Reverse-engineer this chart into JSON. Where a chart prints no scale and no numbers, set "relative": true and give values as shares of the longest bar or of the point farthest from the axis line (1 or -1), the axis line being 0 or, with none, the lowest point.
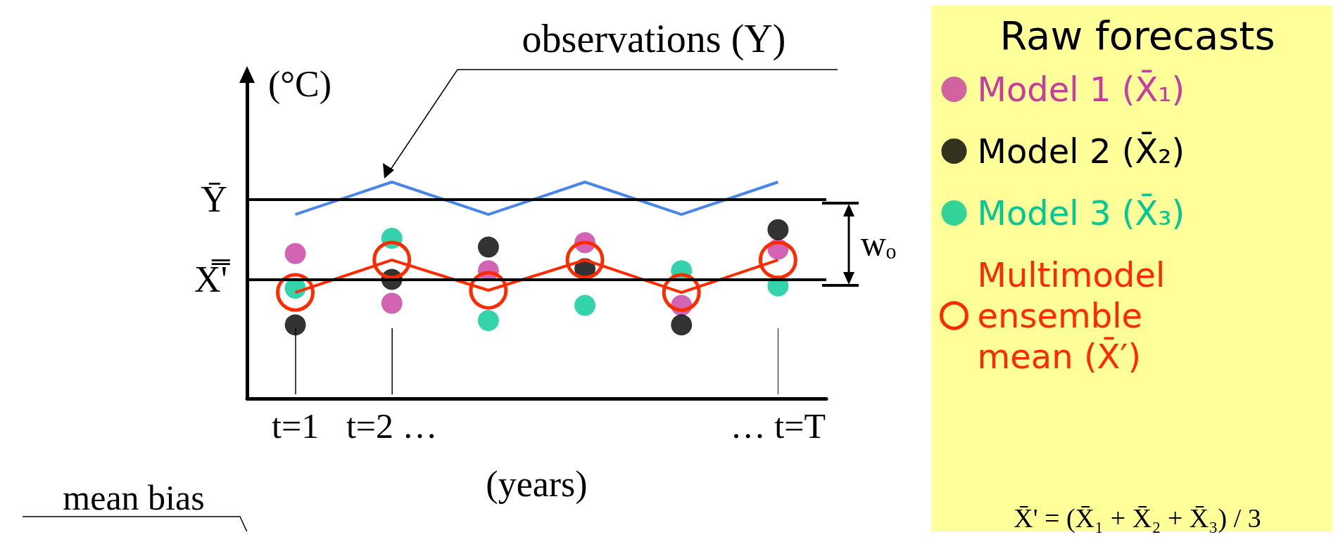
{
  "chart_data": {
    "type": "scatter",
    "relative": true,
    "xlabel": "(years)",
    "ylabel": "(°C)",
    "legend_title": "Raw forecasts",
    "legend": "right",
    "categories": [
      "t=1",
      "t=2 …",
      null,
      null,
      null,
      "… t=T"
    ],
    "series": [
      {
        "type": "line",
        "marker": "none",
        "color": "#4a86e8",
        "values": [
          0.85,
          1.0,
          0.85,
          1.0,
          0.85,
          1.0
        ]
      },
      {
        "name": "Model 1 (X̄₁)",
        "type": "scatter",
        "marker": "circle",
        "color": "#c83ca0",
        "values": [
          0.67,
          0.44,
          0.59,
          0.72,
          0.43,
          0.69
        ]
      },
      {
        "name": "Model 2 (X̄₂)",
        "type": "scatter",
        "marker": "circle",
        "color": "#000000",
        "values": [
          0.34,
          0.55,
          0.7,
          0.6,
          0.34,
          0.78
        ]
      },
      {
        "name": "Model 3 (X̄₃)",
        "marker": "circle",
        "color": "#00c896",
        "values": [
          0.51,
          0.74,
          0.36,
          0.43,
          0.59,
          0.52
        ]
      },
      {
        "name": "Multimodel ensemble mean (X̄′)",
        "type": "line",
        "marker": "circle",
        "color": "#ff2a00",
        "values": [
          0.49,
          0.64,
          0.5,
          0.64,
          0.49,
          0.64
        ]
      }
    ],
    "ref_lines": [
      {
        "axis": "y",
        "value": 0.92,
        "label": "Ȳ"
      },
      {
        "axis": "y",
        "value": 0.55,
        "label": "X̿'"
      }
    ],
    "annotations": [
      "observations (Y)",
      "wₒ",
      "mean bias",
      "X̄' = (X̄₁ + X̄₂ + X̄₃) / 3"
    ]
  }
}
